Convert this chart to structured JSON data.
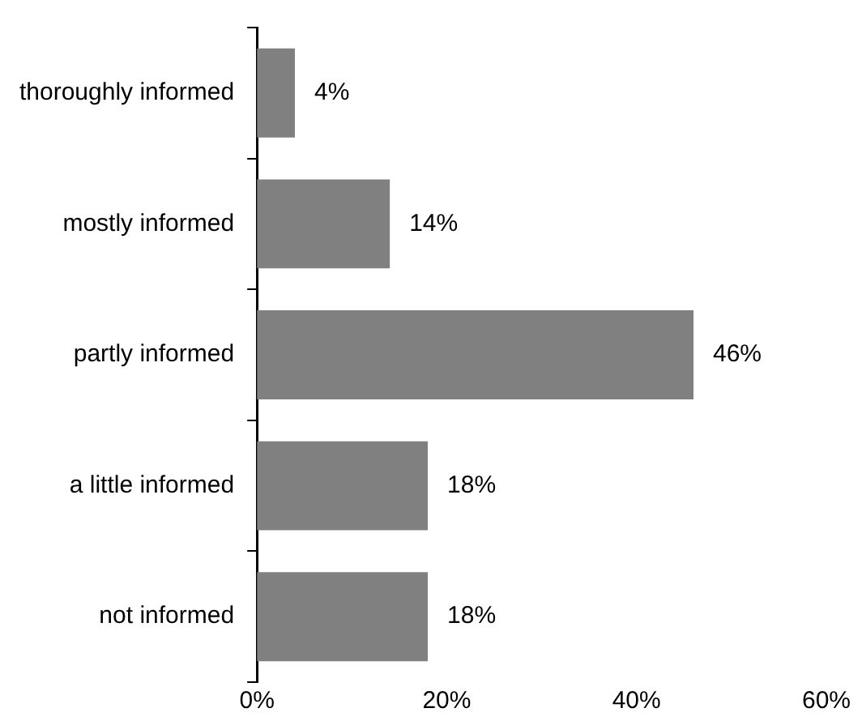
{
  "chart_data": {
    "type": "bar",
    "orientation": "horizontal",
    "categories": [
      "thoroughly informed",
      "mostly informed",
      "partly informed",
      "a little informed",
      "not informed"
    ],
    "values": [
      4,
      14,
      46,
      18,
      18
    ],
    "value_labels": [
      "4%",
      "14%",
      "46%",
      "18%",
      "18%"
    ],
    "color": "#808080",
    "xlim": [
      0,
      60
    ],
    "xticks": [
      {
        "value": 0,
        "label": "0%"
      },
      {
        "value": 20,
        "label": "20%"
      },
      {
        "value": 40,
        "label": "40%"
      },
      {
        "value": 60,
        "label": "60%"
      }
    ],
    "grid": false
  }
}
